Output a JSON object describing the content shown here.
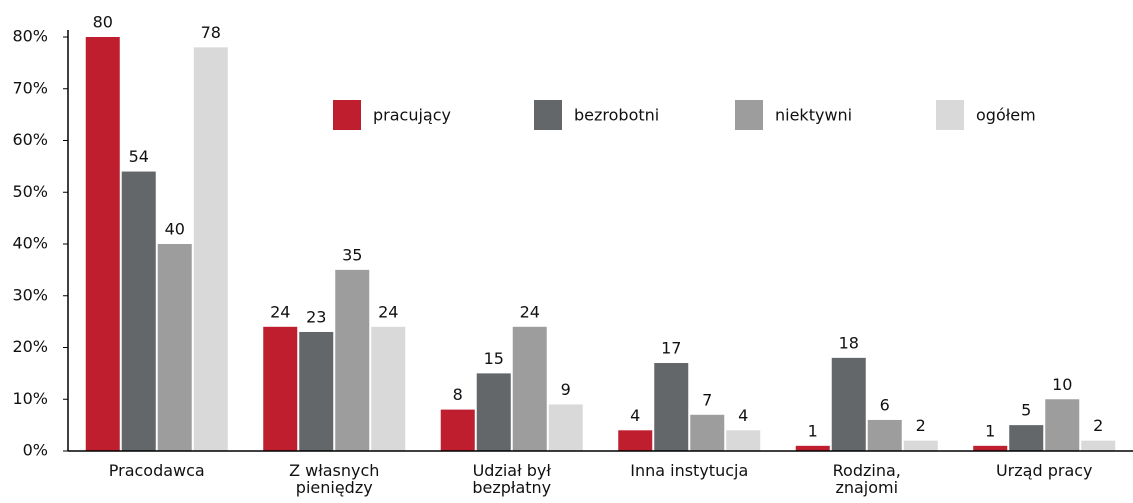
{
  "chart_data": {
    "type": "bar",
    "categories": [
      "Pracodawca",
      "Z własnych pieniędzy",
      "Udział był bezpłatny",
      "Inna instytucja",
      "Rodzina, znajomi",
      "Urząd pracy"
    ],
    "series": [
      {
        "name": "pracujący",
        "color": "#be1e2d",
        "values": [
          80,
          24,
          8,
          4,
          1,
          1
        ]
      },
      {
        "name": "bezrobotni",
        "color": "#636769",
        "values": [
          54,
          23,
          15,
          17,
          18,
          5
        ]
      },
      {
        "name": "niektywni",
        "color": "#9d9d9d",
        "values": [
          40,
          35,
          24,
          7,
          6,
          10
        ]
      },
      {
        "name": "ogółem",
        "color": "#d9d9d9",
        "values": [
          78,
          24,
          9,
          4,
          2,
          2
        ]
      }
    ],
    "ylim": [
      0,
      80
    ],
    "yticks": [
      {
        "value": 0,
        "label": "0%"
      },
      {
        "value": 10,
        "label": "10%"
      },
      {
        "value": 20,
        "label": "20%"
      },
      {
        "value": 30,
        "label": "30%"
      },
      {
        "value": 40,
        "label": "40%"
      },
      {
        "value": 50,
        "label": "50%"
      },
      {
        "value": 60,
        "label": "60%"
      },
      {
        "value": 70,
        "label": "70%"
      },
      {
        "value": 80,
        "label": "80%"
      }
    ],
    "grid": false
  }
}
